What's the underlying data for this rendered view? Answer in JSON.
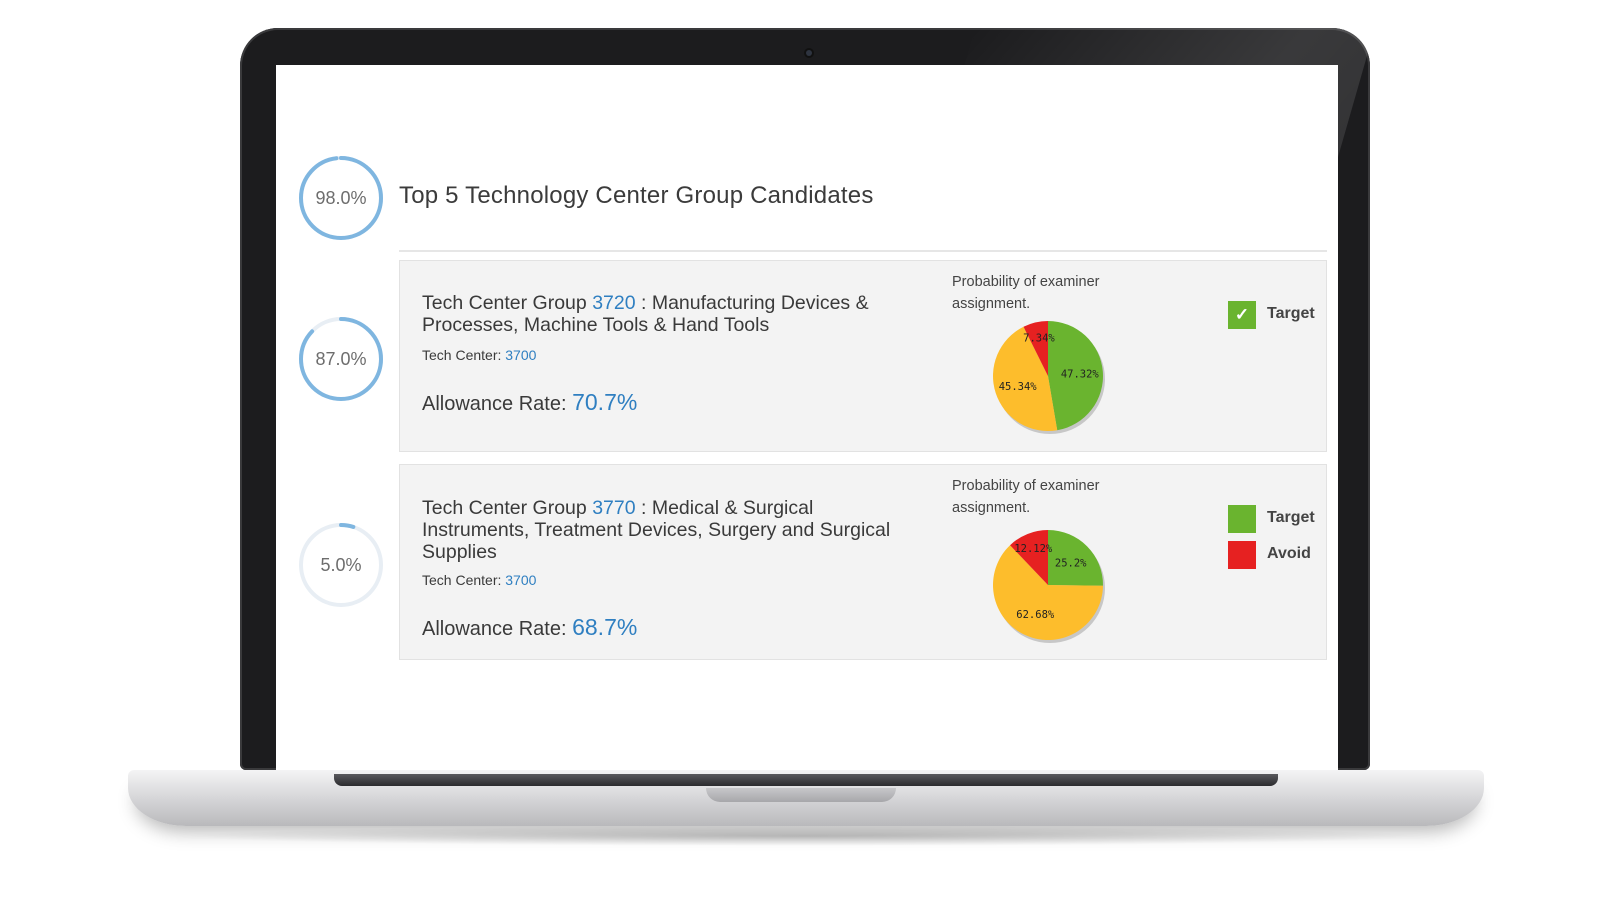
{
  "colors": {
    "accent": "#2f7fc1",
    "ring": "#7fb6e0",
    "target": "#6ab42f",
    "avoid": "#e62121",
    "neutral": "#fdbd2c"
  },
  "header": {
    "score": "98.0%",
    "score_value": 98.0,
    "title": "Top 5 Technology Center Group Candidates"
  },
  "candidates": [
    {
      "score": "87.0%",
      "score_value": 87.0,
      "group_label": "Tech Center Group",
      "group_code": "3720",
      "group_desc": " : Manufacturing Devices & Processes, Machine Tools & Hand Tools",
      "tc_label": "Tech Center:",
      "tc_code": "3700",
      "allow_label": "Allowance Rate:",
      "allow_value": "70.7%",
      "prob_label": "Probability of examiner assignment.",
      "legend": [
        {
          "label": "Target",
          "icon": "check-icon",
          "color": "#6ab42f"
        }
      ]
    },
    {
      "score": "5.0%",
      "score_value": 5.0,
      "group_label": "Tech Center Group",
      "group_code": "3770",
      "group_desc": " : Medical & Surgical Instruments, Treatment Devices, Surgery and Surgical Supplies",
      "tc_label": "Tech Center:",
      "tc_code": "3700",
      "allow_label": "Allowance Rate:",
      "allow_value": "68.7%",
      "prob_label": "Probability of examiner assignment.",
      "legend": [
        {
          "label": "Target",
          "color": "#6ab42f"
        },
        {
          "label": "Avoid",
          "color": "#e62121"
        }
      ]
    }
  ],
  "chart_data": [
    {
      "type": "pie",
      "title": "Probability of examiner assignment.",
      "slices": [
        {
          "label": "47.32%",
          "value": 47.32,
          "color": "#6ab42f"
        },
        {
          "label": "45.34%",
          "value": 45.34,
          "color": "#fdbd2c"
        },
        {
          "label": "7.34%",
          "value": 7.34,
          "color": "#e62121"
        }
      ]
    },
    {
      "type": "pie",
      "title": "Probability of examiner assignment.",
      "slices": [
        {
          "label": "25.2%",
          "value": 25.2,
          "color": "#6ab42f"
        },
        {
          "label": "62.68%",
          "value": 62.68,
          "color": "#fdbd2c"
        },
        {
          "label": "12.12%",
          "value": 12.12,
          "color": "#e62121"
        }
      ]
    }
  ]
}
